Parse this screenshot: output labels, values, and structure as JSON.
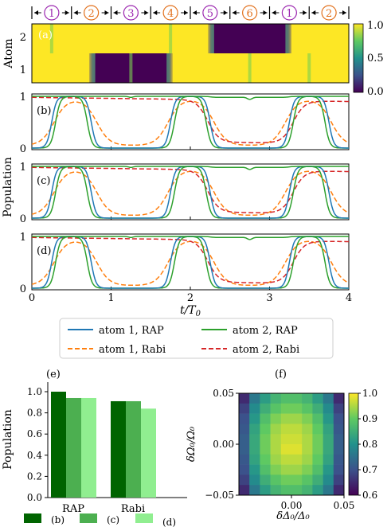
{
  "stages": [
    {
      "label": "1",
      "color": "#9c27b0"
    },
    {
      "label": "2",
      "color": "#e2711d"
    },
    {
      "label": "3",
      "color": "#9c27b0"
    },
    {
      "label": "4",
      "color": "#e2711d"
    },
    {
      "label": "5",
      "color": "#9c27b0"
    },
    {
      "label": "6",
      "color": "#e2711d"
    },
    {
      "label": "1",
      "color": "#9c27b0"
    },
    {
      "label": "2",
      "color": "#e2711d"
    }
  ],
  "labels": {
    "atom_axis": "Atom",
    "population_axis": "Population",
    "x_axis": "t/T",
    "x_axis_sub": "0",
    "panel_a": "(a)",
    "panel_b": "(b)",
    "panel_c": "(c)",
    "panel_d": "(d)",
    "panel_e": "(e)",
    "panel_f": "(f)",
    "e_ylabel": "Population",
    "f_ylabel": "δΩ₀/Ω₀",
    "f_xlabel": "δΔ₀/Δ₀"
  },
  "colors": {
    "atom1_rap": "#1f77b4",
    "atom1_rabi": "#ff7f0e",
    "atom2_rap": "#2ca02c",
    "atom2_rabi": "#d62728",
    "bar_b": "#006400",
    "bar_c": "#4caf50",
    "bar_d": "#90ee90"
  },
  "legend": [
    "atom 1, RAP",
    "atom 2, RAP",
    "atom 1, Rabi",
    "atom 2, Rabi"
  ],
  "chart_data": [
    {
      "type": "heatmap",
      "panel": "(a)",
      "xlim": [
        0,
        4
      ],
      "y_ticks": [
        "1",
        "2"
      ],
      "ylabel": "Atom",
      "colorbar_ticks": [
        "0.0",
        "0.5",
        "1.0"
      ],
      "colorscale": "viridis",
      "atom1_low_intervals": [
        [
          0.75,
          1.75
        ]
      ],
      "atom2_low_intervals": [
        [
          2.25,
          3.25
        ]
      ]
    },
    {
      "type": "line",
      "panels": [
        "(b)",
        "(c)",
        "(d)"
      ],
      "xlim": [
        0,
        4
      ],
      "ylim": [
        0,
        1
      ],
      "x_ticks": [
        "0",
        "1",
        "2",
        "3",
        "4"
      ],
      "y_ticks": [
        "0",
        "1"
      ],
      "xlabel": "t/T0",
      "ylabel": "Population",
      "series": [
        {
          "name": "atom 1, RAP",
          "style": "solid",
          "description": "rises to 1 at t≈0.25, falls to 0 at t≈0.75, rises at t≈1.75, falls at t≈2.25, rises at t≈3.25, falls at t≈3.75"
        },
        {
          "name": "atom 2, RAP",
          "style": "solid",
          "description": "near 1 except brief dips, falls near t≈2.25, rises near t≈3.25"
        },
        {
          "name": "atom 1, Rabi",
          "style": "dashed"
        },
        {
          "name": "atom 2, Rabi",
          "style": "dashed"
        }
      ]
    },
    {
      "type": "bar",
      "panel": "(e)",
      "categories": [
        "RAP",
        "Rabi"
      ],
      "ylabel": "Population",
      "ylim": [
        0,
        1.0
      ],
      "y_ticks": [
        "0.0",
        "0.2",
        "0.4",
        "0.6",
        "0.8",
        "1.0"
      ],
      "series": [
        {
          "name": "(b)",
          "values": [
            1.0,
            0.91
          ]
        },
        {
          "name": "(c)",
          "values": [
            0.94,
            0.91
          ]
        },
        {
          "name": "(d)",
          "values": [
            0.94,
            0.84
          ]
        }
      ]
    },
    {
      "type": "heatmap",
      "panel": "(f)",
      "xlabel": "δΔ0/Δ0",
      "ylabel": "δΩ0/Ω0",
      "x_ticks": [
        "0.00",
        "0.05"
      ],
      "y_ticks": [
        "−0.05",
        "0.00",
        "0.05"
      ],
      "xlim": [
        -0.05,
        0.05
      ],
      "ylim": [
        -0.05,
        0.05
      ],
      "colorbar_ticks": [
        "0.6",
        "0.7",
        "0.8",
        "0.9",
        "1.0"
      ],
      "colorscale": "viridis",
      "grid_values": [
        [
          0.65,
          0.76,
          0.82,
          0.86,
          0.88,
          0.88,
          0.86,
          0.82,
          0.76,
          0.65
        ],
        [
          0.68,
          0.79,
          0.85,
          0.89,
          0.91,
          0.91,
          0.89,
          0.85,
          0.79,
          0.68
        ],
        [
          0.7,
          0.81,
          0.88,
          0.92,
          0.94,
          0.94,
          0.92,
          0.88,
          0.81,
          0.7
        ],
        [
          0.71,
          0.83,
          0.9,
          0.94,
          0.96,
          0.96,
          0.94,
          0.9,
          0.83,
          0.71
        ],
        [
          0.72,
          0.84,
          0.91,
          0.95,
          0.97,
          0.97,
          0.95,
          0.91,
          0.84,
          0.72
        ],
        [
          0.72,
          0.84,
          0.91,
          0.95,
          0.98,
          0.98,
          0.95,
          0.91,
          0.84,
          0.72
        ],
        [
          0.71,
          0.83,
          0.9,
          0.94,
          0.96,
          0.96,
          0.94,
          0.9,
          0.83,
          0.71
        ],
        [
          0.7,
          0.81,
          0.88,
          0.92,
          0.94,
          0.94,
          0.92,
          0.88,
          0.81,
          0.7
        ],
        [
          0.68,
          0.79,
          0.85,
          0.89,
          0.91,
          0.91,
          0.89,
          0.85,
          0.79,
          0.68
        ],
        [
          0.65,
          0.76,
          0.82,
          0.86,
          0.88,
          0.88,
          0.86,
          0.82,
          0.76,
          0.65
        ]
      ]
    }
  ]
}
